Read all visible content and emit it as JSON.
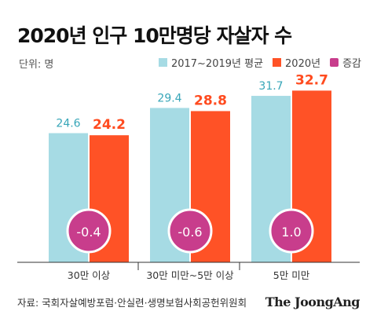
{
  "title": "2020년 인구 10만명당 자살자 수",
  "unit": "단위: 명",
  "legend": [
    {
      "label": "2017~2019년 평균",
      "color": "#a6dbe4"
    },
    {
      "label": "2020년",
      "color": "#ff5226"
    },
    {
      "label": "증감",
      "color": "#c83d8c"
    }
  ],
  "source": "자료: 국회자살예방포럼·안실련·생명보험사회공헌위원회",
  "brand": "The JoongAng",
  "chart_data": {
    "type": "bar",
    "categories": [
      "30만 이상",
      "30만 미만~5만 이상",
      "5만 미만"
    ],
    "series": [
      {
        "name": "2017~2019년 평균",
        "values": [
          24.6,
          29.4,
          31.7
        ],
        "color": "#a6dbe4"
      },
      {
        "name": "2020년",
        "values": [
          24.2,
          28.8,
          32.7
        ],
        "color": "#ff5226"
      }
    ],
    "change": {
      "name": "증감",
      "values": [
        "-0.4",
        "-0.6",
        "1.0"
      ],
      "color": "#c83d8c"
    },
    "ylim": [
      0,
      35
    ],
    "grid": false
  }
}
